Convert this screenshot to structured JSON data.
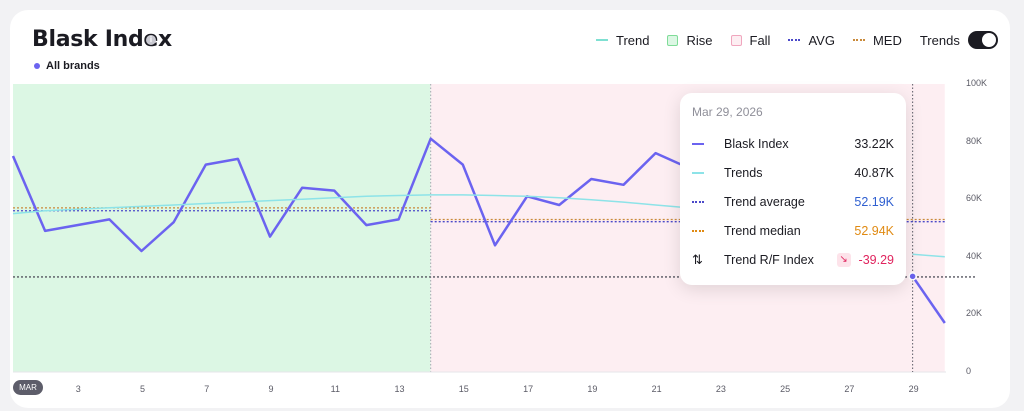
{
  "header": {
    "title": "Blask Index",
    "filter_label": "All brands"
  },
  "legend": {
    "trend": "Trend",
    "rise": "Rise",
    "fall": "Fall",
    "avg": "AVG",
    "med": "MED",
    "toggle_label": "Trends",
    "toggle_on": true
  },
  "colors": {
    "index_line": "#6b63f0",
    "trend_line": "#8de3e8",
    "rise_fill": "#dcf7e4",
    "fall_fill": "#fdeef2",
    "avg": "#4b49c9",
    "med": "#c98a3a",
    "negative": "#e0245e"
  },
  "tooltip": {
    "date": "Mar 29, 2026",
    "rows": [
      {
        "label": "Blask Index",
        "value": "33.22K",
        "color": "#1b1b22"
      },
      {
        "label": "Trends",
        "value": "40.87K",
        "color": "#1b1b22"
      },
      {
        "label": "Trend average",
        "value": "52.19K",
        "color": "#2f5fd0"
      },
      {
        "label": "Trend median",
        "value": "52.94K",
        "color": "#e08a12"
      },
      {
        "label": "Trend R/F Index",
        "value": "-39.29",
        "color": "#e0245e"
      }
    ]
  },
  "chart_data": {
    "type": "line",
    "x": [
      1,
      2,
      3,
      4,
      5,
      6,
      7,
      8,
      9,
      10,
      11,
      12,
      13,
      14,
      15,
      16,
      17,
      18,
      19,
      20,
      21,
      22,
      23,
      24,
      25,
      26,
      27,
      28,
      29,
      30
    ],
    "xtick_labels": [
      "MAR",
      "3",
      "5",
      "7",
      "9",
      "11",
      "13",
      "15",
      "17",
      "19",
      "21",
      "23",
      "25",
      "27",
      "29"
    ],
    "xtick_values": [
      1,
      3,
      5,
      7,
      9,
      11,
      13,
      15,
      17,
      19,
      21,
      23,
      25,
      27,
      29
    ],
    "ylim": [
      0,
      100000
    ],
    "ytick_labels": [
      "0",
      "20K",
      "40K",
      "60K",
      "80K",
      "100K"
    ],
    "ytick_values": [
      0,
      20000,
      40000,
      60000,
      80000,
      100000
    ],
    "series": [
      {
        "name": "Blask Index",
        "values": [
          75000,
          49000,
          51000,
          53000,
          42000,
          52000,
          72000,
          74000,
          47000,
          64000,
          63000,
          51000,
          53000,
          81000,
          72000,
          44000,
          61000,
          58000,
          67000,
          65000,
          76000,
          71000,
          null,
          null,
          null,
          null,
          null,
          null,
          33220,
          17000
        ]
      },
      {
        "name": "Trends",
        "values": [
          55000,
          56000,
          56500,
          57000,
          57500,
          58000,
          58500,
          59000,
          59500,
          60000,
          60500,
          61000,
          61300,
          61500,
          61500,
          61300,
          61000,
          60500,
          59800,
          59000,
          58000,
          57000,
          null,
          null,
          null,
          null,
          null,
          null,
          40870,
          40000
        ]
      }
    ],
    "regions": [
      {
        "type": "rise",
        "from": 1,
        "to": 14
      },
      {
        "type": "fall",
        "from": 14,
        "to": 30
      }
    ],
    "levels": [
      {
        "type": "med",
        "from": 1,
        "to": 14,
        "value": 57000
      },
      {
        "type": "avg",
        "from": 1,
        "to": 14,
        "value": 56000
      },
      {
        "type": "med",
        "from": 14,
        "to": 30,
        "value": 52940
      },
      {
        "type": "avg",
        "from": 14,
        "to": 30,
        "value": 52190
      },
      {
        "type": "avg",
        "from": 1,
        "to": 31,
        "value": 33000
      }
    ],
    "hover_x": 29
  }
}
